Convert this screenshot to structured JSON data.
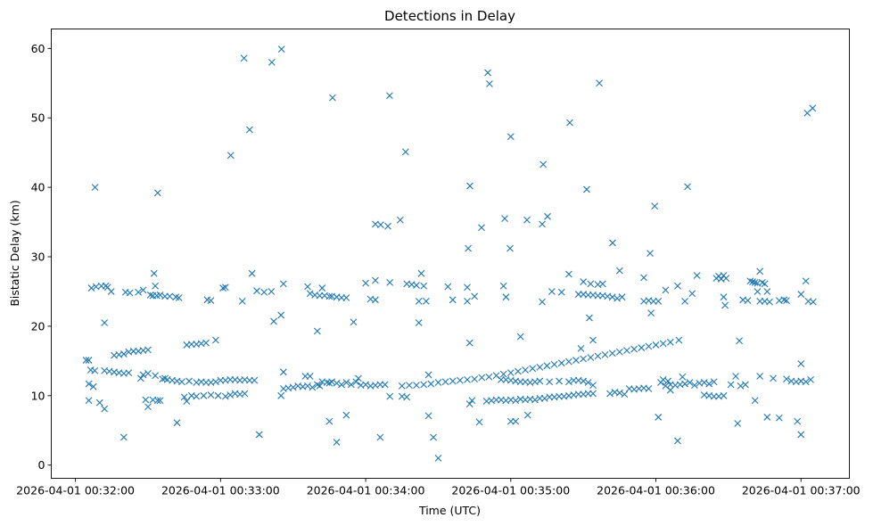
{
  "chart_data": {
    "type": "scatter",
    "title": "Detections in Delay",
    "xlabel": "Time (UTC)",
    "ylabel": "Bistatic Delay (km)",
    "x_units": "seconds after 2026-04-01 00:32:00",
    "xlim": [
      -10,
      320
    ],
    "ylim": [
      -1.9,
      62.8
    ],
    "grid": false,
    "marker": "x",
    "color": "#1f77b4",
    "xticks": [
      0,
      60,
      120,
      180,
      240,
      300
    ],
    "xtick_labels": [
      "2026-04-01 00:32:00",
      "2026-04-01 00:33:00",
      "2026-04-01 00:34:00",
      "2026-04-01 00:35:00",
      "2026-04-01 00:36:00",
      "2026-04-01 00:37:00"
    ],
    "yticks": [
      0,
      10,
      20,
      30,
      40,
      50,
      60
    ],
    "ytick_labels": [
      "0",
      "10",
      "20",
      "30",
      "40",
      "50",
      "60"
    ],
    "points": [
      [
        8.1,
        40.0
      ],
      [
        34,
        39.2
      ],
      [
        64.2,
        44.6
      ],
      [
        69.7,
        58.6
      ],
      [
        72,
        48.3
      ],
      [
        81.2,
        58
      ],
      [
        85.2,
        59.9
      ],
      [
        106.3,
        52.9
      ],
      [
        129.9,
        53.2
      ],
      [
        136.5,
        45.1
      ],
      [
        163.1,
        40.2
      ],
      [
        170.5,
        56.5
      ],
      [
        171.2,
        54.9
      ],
      [
        180,
        47.3
      ],
      [
        193.4,
        43.3
      ],
      [
        204.4,
        49.3
      ],
      [
        211.4,
        39.7
      ],
      [
        216.6,
        55
      ],
      [
        239.5,
        37.3
      ],
      [
        253.1,
        40.1
      ],
      [
        302.6,
        50.7
      ],
      [
        304.8,
        51.4
      ],
      [
        134.3,
        35.3
      ],
      [
        124,
        34.7
      ],
      [
        126.2,
        34.6
      ],
      [
        129.2,
        34.4
      ],
      [
        162.4,
        31.2
      ],
      [
        167.9,
        34.2
      ],
      [
        177.5,
        35.5
      ],
      [
        179.7,
        31.2
      ],
      [
        186.7,
        35.3
      ],
      [
        193,
        34.7
      ],
      [
        195.2,
        35.8
      ],
      [
        222.1,
        32
      ],
      [
        237.6,
        30.5
      ],
      [
        4.4,
        15.1
      ],
      [
        5.5,
        15.1
      ],
      [
        5.5,
        11.7
      ],
      [
        7.4,
        11.3
      ],
      [
        6.3,
        13.7
      ],
      [
        8,
        13.6
      ],
      [
        5.5,
        9.3
      ],
      [
        10,
        9.0
      ],
      [
        12,
        8.1
      ],
      [
        12,
        13.6
      ],
      [
        14,
        13.5
      ],
      [
        16,
        13.4
      ],
      [
        18,
        13.3
      ],
      [
        20,
        13.2
      ],
      [
        22,
        13.3
      ],
      [
        16,
        15.8
      ],
      [
        18,
        15.9
      ],
      [
        20,
        16.0
      ],
      [
        22,
        16.3
      ],
      [
        24,
        16.4
      ],
      [
        26,
        16.4
      ],
      [
        28,
        16.5
      ],
      [
        30,
        16.6
      ],
      [
        27,
        12.5
      ],
      [
        28,
        13.0
      ],
      [
        29,
        9.4
      ],
      [
        30,
        8.4
      ],
      [
        30,
        13.2
      ],
      [
        32,
        9.4
      ],
      [
        33,
        12.9
      ],
      [
        34,
        9.3
      ],
      [
        35,
        9.3
      ],
      [
        36,
        12.4
      ],
      [
        37,
        12.5
      ],
      [
        38,
        12.3
      ],
      [
        40,
        12.2
      ],
      [
        42,
        12.1
      ],
      [
        44,
        12.0
      ],
      [
        46,
        17.3
      ],
      [
        48,
        17.4
      ],
      [
        50,
        17.4
      ],
      [
        52,
        17.5
      ],
      [
        54,
        17.6
      ],
      [
        42,
        6.1
      ],
      [
        45,
        9.8
      ],
      [
        46,
        9.2
      ],
      [
        47,
        12.1
      ],
      [
        48,
        10.0
      ],
      [
        50,
        11.9
      ],
      [
        52,
        12.0
      ],
      [
        54,
        11.9
      ],
      [
        56,
        11.9
      ],
      [
        58,
        12.0
      ],
      [
        60,
        12.2
      ],
      [
        62,
        12.2
      ],
      [
        64,
        12.3
      ],
      [
        66,
        12.3
      ],
      [
        68,
        12.2
      ],
      [
        70,
        12.3
      ],
      [
        50,
        9.9
      ],
      [
        53,
        10
      ],
      [
        56,
        10.1
      ],
      [
        59,
        10.0
      ],
      [
        62,
        9.9
      ],
      [
        64,
        10.1
      ],
      [
        66,
        10.3
      ],
      [
        68,
        10.2
      ],
      [
        70,
        10.3
      ],
      [
        58,
        18.0
      ],
      [
        20,
        4.0
      ],
      [
        6.6,
        25.5
      ],
      [
        8.5,
        25.7
      ],
      [
        10.7,
        25.8
      ],
      [
        12.5,
        25.8
      ],
      [
        13.3,
        25.6
      ],
      [
        14.8,
        25.0
      ],
      [
        20.7,
        24.9
      ],
      [
        22.5,
        24.8
      ],
      [
        26,
        24.9
      ],
      [
        28,
        25.2
      ],
      [
        31,
        24.5
      ],
      [
        32,
        24.4
      ],
      [
        33.6,
        24.4
      ],
      [
        35,
        24.5
      ],
      [
        37,
        24.3
      ],
      [
        39,
        24.3
      ],
      [
        41.5,
        24.2
      ],
      [
        42.8,
        24.1
      ],
      [
        32.5,
        27.6
      ],
      [
        33,
        25.8
      ],
      [
        12,
        20.5
      ],
      [
        54.5,
        23.8
      ],
      [
        56,
        23.7
      ],
      [
        61,
        25.5
      ],
      [
        62,
        25.6
      ],
      [
        69,
        23.6
      ],
      [
        73,
        27.6
      ],
      [
        75,
        25.1
      ],
      [
        78,
        24.9
      ],
      [
        81,
        25.0
      ],
      [
        86,
        26.1
      ],
      [
        82,
        20.7
      ],
      [
        85,
        21.6
      ],
      [
        72,
        12.2
      ],
      [
        74,
        12.2
      ],
      [
        76,
        4.4
      ],
      [
        85,
        10.0
      ],
      [
        86,
        11.0
      ],
      [
        86,
        13.4
      ],
      [
        88,
        11.1
      ],
      [
        90,
        11.2
      ],
      [
        92,
        11.4
      ],
      [
        94,
        11.3
      ],
      [
        95,
        12.8
      ],
      [
        96,
        11.4
      ],
      [
        97,
        12.8
      ],
      [
        98,
        11.2
      ],
      [
        100,
        11.6
      ],
      [
        101,
        11.4
      ],
      [
        102,
        12.0
      ],
      [
        104,
        11.9
      ],
      [
        105,
        11.8
      ],
      [
        106,
        12.0
      ],
      [
        108,
        11.8
      ],
      [
        110,
        11.6
      ],
      [
        112,
        11.9
      ],
      [
        114,
        11.6
      ],
      [
        116,
        12.0
      ],
      [
        117,
        12.5
      ],
      [
        118,
        11.5
      ],
      [
        120,
        11.6
      ],
      [
        122,
        11.4
      ],
      [
        124,
        11.5
      ],
      [
        126,
        11.6
      ],
      [
        128,
        11.6
      ],
      [
        96,
        25.7
      ],
      [
        97,
        24.7
      ],
      [
        99,
        24.5
      ],
      [
        101,
        24.4
      ],
      [
        103,
        24.4
      ],
      [
        105,
        24.3
      ],
      [
        106,
        24.3
      ],
      [
        108,
        24.2
      ],
      [
        110,
        24.1
      ],
      [
        112,
        24.1
      ],
      [
        100,
        19.3
      ],
      [
        102,
        25.5
      ],
      [
        105,
        6.3
      ],
      [
        108,
        3.3
      ],
      [
        112,
        7.2
      ],
      [
        115,
        20.6
      ],
      [
        120,
        26.2
      ],
      [
        122,
        23.9
      ],
      [
        124,
        26.6
      ],
      [
        124,
        23.8
      ],
      [
        126,
        4.0
      ],
      [
        130,
        26.3
      ],
      [
        130,
        9.9
      ],
      [
        135,
        9.9
      ],
      [
        137,
        9.8
      ],
      [
        135,
        11.4
      ],
      [
        138,
        11.5
      ],
      [
        141,
        11.5
      ],
      [
        144,
        11.6
      ],
      [
        147,
        11.7
      ],
      [
        150,
        11.9
      ],
      [
        153,
        12.0
      ],
      [
        156,
        12.1
      ],
      [
        159,
        12.2
      ],
      [
        162,
        12.3
      ],
      [
        165,
        12.4
      ],
      [
        168,
        12.6
      ],
      [
        171,
        12.7
      ],
      [
        174,
        12.9
      ],
      [
        177,
        13.1
      ],
      [
        180,
        13.3
      ],
      [
        183,
        13.5
      ],
      [
        186,
        13.7
      ],
      [
        189,
        13.9
      ],
      [
        192,
        14.1
      ],
      [
        195,
        14.3
      ],
      [
        198,
        14.5
      ],
      [
        201,
        14.7
      ],
      [
        204,
        14.9
      ],
      [
        207,
        15.1
      ],
      [
        210,
        15.3
      ],
      [
        213,
        15.5
      ],
      [
        216,
        15.7
      ],
      [
        219,
        15.9
      ],
      [
        222,
        16.1
      ],
      [
        225,
        16.3
      ],
      [
        228,
        16.5
      ],
      [
        231,
        16.7
      ],
      [
        234,
        16.9
      ],
      [
        237,
        17.1
      ],
      [
        240,
        17.3
      ],
      [
        243,
        17.5
      ],
      [
        246,
        17.7
      ],
      [
        137,
        26.1
      ],
      [
        139,
        26.0
      ],
      [
        141,
        25.9
      ],
      [
        142,
        23.6
      ],
      [
        143,
        27.6
      ],
      [
        144,
        25.8
      ],
      [
        145,
        23.6
      ],
      [
        142,
        20.5
      ],
      [
        146,
        13.0
      ],
      [
        146,
        7.1
      ],
      [
        148,
        4.0
      ],
      [
        154,
        25.7
      ],
      [
        156,
        23.8
      ],
      [
        150,
        1.0
      ],
      [
        162,
        25.6
      ],
      [
        162,
        23.6
      ],
      [
        163,
        8.8
      ],
      [
        164,
        9.3
      ],
      [
        167,
        6.2
      ],
      [
        170,
        9.2
      ],
      [
        172,
        9.3
      ],
      [
        174,
        9.4
      ],
      [
        176,
        9.4
      ],
      [
        178,
        9.3
      ],
      [
        180,
        9.4
      ],
      [
        182,
        9.3
      ],
      [
        184,
        9.5
      ],
      [
        186,
        9.4
      ],
      [
        188,
        9.5
      ],
      [
        190,
        9.4
      ],
      [
        192,
        9.6
      ],
      [
        194,
        9.6
      ],
      [
        196,
        9.8
      ],
      [
        198,
        9.8
      ],
      [
        200,
        9.9
      ],
      [
        202,
        9.9
      ],
      [
        204,
        10.0
      ],
      [
        206,
        10.1
      ],
      [
        208,
        10.2
      ],
      [
        210,
        10.2
      ],
      [
        212,
        10.3
      ],
      [
        214,
        10.3
      ],
      [
        176,
        12.3
      ],
      [
        178,
        12.3
      ],
      [
        180,
        12.2
      ],
      [
        182,
        12.1
      ],
      [
        184,
        12.0
      ],
      [
        186,
        12.0
      ],
      [
        188,
        11.9
      ],
      [
        190,
        12.0
      ],
      [
        192,
        12.1
      ],
      [
        196,
        12.0
      ],
      [
        200,
        12.1
      ],
      [
        204,
        12.0
      ],
      [
        206,
        12.2
      ],
      [
        208,
        12.2
      ],
      [
        210,
        12.1
      ],
      [
        212,
        11.9
      ],
      [
        214,
        11.5
      ],
      [
        180,
        6.3
      ],
      [
        182,
        6.3
      ],
      [
        187,
        7.2
      ],
      [
        193,
        23.5
      ],
      [
        197,
        25.0
      ],
      [
        201,
        24.9
      ],
      [
        165,
        24.3
      ],
      [
        177,
        25.8
      ],
      [
        178,
        24.2
      ],
      [
        163,
        17.6
      ],
      [
        184,
        18.5
      ],
      [
        204,
        27.5
      ],
      [
        208,
        24.6
      ],
      [
        210,
        24.6
      ],
      [
        212,
        24.5
      ],
      [
        214,
        24.5
      ],
      [
        216,
        24.4
      ],
      [
        218,
        24.4
      ],
      [
        220,
        24.3
      ],
      [
        222,
        24.2
      ],
      [
        224,
        24.0
      ],
      [
        210,
        26.4
      ],
      [
        213,
        26.1
      ],
      [
        216,
        26.0
      ],
      [
        218,
        26.1
      ],
      [
        212.5,
        21.2
      ],
      [
        209,
        16.8
      ],
      [
        214,
        18.0
      ],
      [
        225,
        28.0
      ],
      [
        226,
        24.2
      ],
      [
        221,
        10.3
      ],
      [
        223,
        10.5
      ],
      [
        225,
        10.4
      ],
      [
        227,
        10.2
      ],
      [
        229,
        11.0
      ],
      [
        231,
        10.9
      ],
      [
        233,
        11.0
      ],
      [
        235,
        11.1
      ],
      [
        237,
        11.0
      ],
      [
        235,
        23.6
      ],
      [
        237,
        23.7
      ],
      [
        239,
        23.6
      ],
      [
        241,
        23.6
      ],
      [
        235,
        27.0
      ],
      [
        238,
        21.9
      ],
      [
        241,
        6.9
      ],
      [
        244,
        25.2
      ],
      [
        249,
        25.8
      ],
      [
        252,
        23.6
      ],
      [
        255,
        24.7
      ],
      [
        257,
        27.3
      ],
      [
        242,
        11.9
      ],
      [
        243,
        12.3
      ],
      [
        244,
        11.4
      ],
      [
        245,
        12.1
      ],
      [
        246,
        11.6
      ],
      [
        248,
        11.5
      ],
      [
        250,
        11.6
      ],
      [
        252,
        11.7
      ],
      [
        254,
        11.9
      ],
      [
        256,
        11.5
      ],
      [
        258,
        11.8
      ],
      [
        260,
        11.9
      ],
      [
        262,
        11.7
      ],
      [
        264,
        12.0
      ],
      [
        249.5,
        18.0
      ],
      [
        249,
        3.5
      ],
      [
        251,
        12.7
      ],
      [
        246,
        10.8
      ],
      [
        260,
        10.1
      ],
      [
        262,
        10.0
      ],
      [
        264,
        9.9
      ],
      [
        266,
        9.9
      ],
      [
        268,
        10.0
      ],
      [
        265,
        26.9
      ],
      [
        266,
        27.2
      ],
      [
        267,
        26.8
      ],
      [
        268,
        27.3
      ],
      [
        269,
        26.9
      ],
      [
        268.6,
        23.0
      ],
      [
        268,
        24.2
      ],
      [
        271,
        11.6
      ],
      [
        273,
        12.8
      ],
      [
        275,
        11.4
      ],
      [
        277,
        11.6
      ],
      [
        273.8,
        6.0
      ],
      [
        274.5,
        17.9
      ],
      [
        276,
        23.8
      ],
      [
        278,
        23.7
      ],
      [
        279,
        26.5
      ],
      [
        280,
        26.4
      ],
      [
        281,
        26.3
      ],
      [
        282,
        26.2
      ],
      [
        283,
        27.9
      ],
      [
        284,
        26.3
      ],
      [
        285,
        26.1
      ],
      [
        282,
        25.0
      ],
      [
        283,
        23.6
      ],
      [
        285,
        23.6
      ],
      [
        286,
        25.0
      ],
      [
        287,
        23.5
      ],
      [
        286,
        6.9
      ],
      [
        281,
        9.3
      ],
      [
        288.5,
        12.5
      ],
      [
        283,
        12.8
      ],
      [
        291,
        23.7
      ],
      [
        293,
        23.8
      ],
      [
        294,
        23.7
      ],
      [
        291,
        6.8
      ],
      [
        294,
        12.4
      ],
      [
        296,
        12.1
      ],
      [
        298,
        12.0
      ],
      [
        300,
        12.1
      ],
      [
        302,
        12.0
      ],
      [
        304,
        12.3
      ],
      [
        300,
        14.6
      ],
      [
        298.5,
        6.3
      ],
      [
        300,
        4.4
      ],
      [
        300,
        24.6
      ],
      [
        302,
        26.5
      ],
      [
        303,
        23.6
      ],
      [
        305,
        23.5
      ]
    ]
  }
}
